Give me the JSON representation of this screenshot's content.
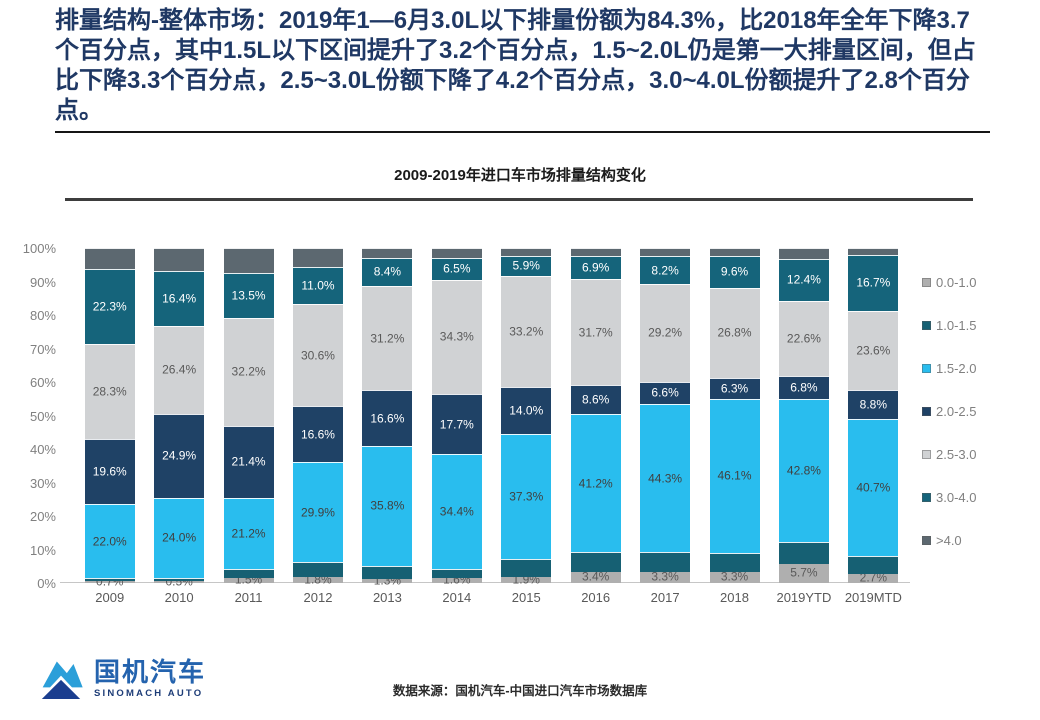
{
  "slide": {
    "headline": "排量结构-整体市场：2019年1—6月3.0L以下排量份额为84.3%，比2018年全年下降3.7个百分点，其中1.5L以下区间提升了3.2个百分点，1.5~2.0L仍是第一大排量区间，但占比下降3.3个百分点，2.5~3.0L份额下降了4.2个百分点，3.0~4.0L份额提升了2.8个百分点。",
    "source": "数据来源：国机汽车-中国进口汽车市场数据库",
    "logo": {
      "cn": "国机汽车",
      "en": "SINOMACH AUTO"
    }
  },
  "chart_data": {
    "type": "bar",
    "subtype": "stacked-100-percent",
    "title": "2009-2019年进口车市场排量结构变化",
    "categories": [
      "2009",
      "2010",
      "2011",
      "2012",
      "2013",
      "2014",
      "2015",
      "2016",
      "2017",
      "2018",
      "2019YTD",
      "2019MTD"
    ],
    "series": [
      {
        "name": "0.0-1.0",
        "color": "#AFAFAF",
        "label_color": "#595959",
        "show_labels": true,
        "values": [
          0.7,
          0.5,
          1.5,
          1.8,
          1.3,
          1.6,
          1.9,
          3.4,
          3.3,
          3.3,
          5.7,
          2.7
        ]
      },
      {
        "name": "1.0-1.5",
        "color": "#166073",
        "show_labels": false,
        "estimated_from_pixels": true,
        "values": [
          0.8,
          1.0,
          2.8,
          4.4,
          3.8,
          2.6,
          5.3,
          5.8,
          5.9,
          5.6,
          6.4,
          5.5
        ]
      },
      {
        "name": "1.5-2.0",
        "color": "#29BDEE",
        "label_color": "#404040",
        "show_labels": true,
        "values": [
          22.0,
          24.0,
          21.2,
          29.9,
          35.8,
          34.4,
          37.3,
          41.2,
          44.3,
          46.1,
          42.8,
          40.7
        ]
      },
      {
        "name": "2.0-2.5",
        "color": "#1F4266",
        "label_color": "#FFFFFF",
        "show_labels": true,
        "values": [
          19.6,
          24.9,
          21.4,
          16.6,
          16.6,
          17.7,
          14.0,
          8.6,
          6.6,
          6.3,
          6.8,
          8.8
        ]
      },
      {
        "name": "2.5-3.0",
        "color": "#D0D2D4",
        "label_color": "#595959",
        "show_labels": true,
        "values": [
          28.3,
          26.4,
          32.2,
          30.6,
          31.2,
          34.3,
          33.2,
          31.7,
          29.2,
          26.8,
          22.6,
          23.6
        ]
      },
      {
        "name": "3.0-4.0",
        "color": "#15647B",
        "label_color": "#FFFFFF",
        "show_labels": true,
        "values": [
          22.3,
          16.4,
          13.5,
          11.0,
          8.4,
          6.5,
          5.9,
          6.9,
          8.2,
          9.6,
          12.4,
          16.7
        ]
      },
      {
        "name": ">4.0",
        "color": "#5C6870",
        "show_labels": false,
        "estimated_from_pixels": true,
        "values": [
          6.3,
          6.8,
          7.4,
          5.7,
          2.9,
          2.9,
          2.4,
          2.4,
          2.5,
          2.3,
          3.3,
          2.0
        ]
      }
    ],
    "y_axis": {
      "min": 0,
      "max": 100,
      "tick_step": 10,
      "ticks": [
        "0%",
        "10%",
        "20%",
        "30%",
        "40%",
        "50%",
        "60%",
        "70%",
        "80%",
        "90%",
        "100%"
      ],
      "grid": false
    },
    "legend_position": "right",
    "value_suffix": "%"
  }
}
